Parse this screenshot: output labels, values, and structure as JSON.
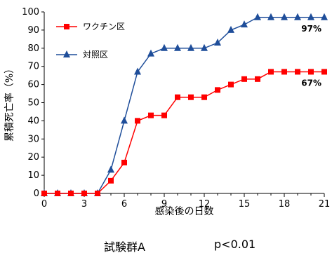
{
  "chart_data": {
    "type": "line",
    "title": "",
    "xlabel": "感染後の日数",
    "ylabel": "累積死亡率（%）",
    "xlim": [
      0,
      21
    ],
    "ylim": [
      0,
      100
    ],
    "xticks": [
      0,
      3,
      6,
      9,
      12,
      15,
      18,
      21
    ],
    "yticks": [
      0,
      10,
      20,
      30,
      40,
      50,
      60,
      70,
      80,
      90,
      100
    ],
    "legend_position": "top-left",
    "grid": false,
    "series": [
      {
        "name": "ワクチン区",
        "color": "#ff0000",
        "marker": "square",
        "x": [
          0,
          1,
          2,
          3,
          4,
          5,
          6,
          7,
          8,
          9,
          10,
          11,
          12,
          13,
          14,
          15,
          16,
          17,
          18,
          19,
          20,
          21
        ],
        "y": [
          0,
          0,
          0,
          0,
          0,
          7,
          17,
          40,
          43,
          43,
          53,
          53,
          53,
          57,
          60,
          63,
          63,
          67,
          67,
          67,
          67,
          67
        ],
        "end_label": "67%"
      },
      {
        "name": "対照区",
        "color": "#1f4e9a",
        "marker": "triangle",
        "x": [
          0,
          1,
          2,
          3,
          4,
          5,
          6,
          7,
          8,
          9,
          10,
          11,
          12,
          13,
          14,
          15,
          16,
          17,
          18,
          19,
          20,
          21
        ],
        "y": [
          0,
          0,
          0,
          0,
          0,
          13,
          40,
          67,
          77,
          80,
          80,
          80,
          80,
          83,
          90,
          93,
          97,
          97,
          97,
          97,
          97,
          97
        ],
        "end_label": "97%"
      }
    ]
  },
  "caption": {
    "group": "試験群A",
    "p_value": "p<0.01"
  }
}
